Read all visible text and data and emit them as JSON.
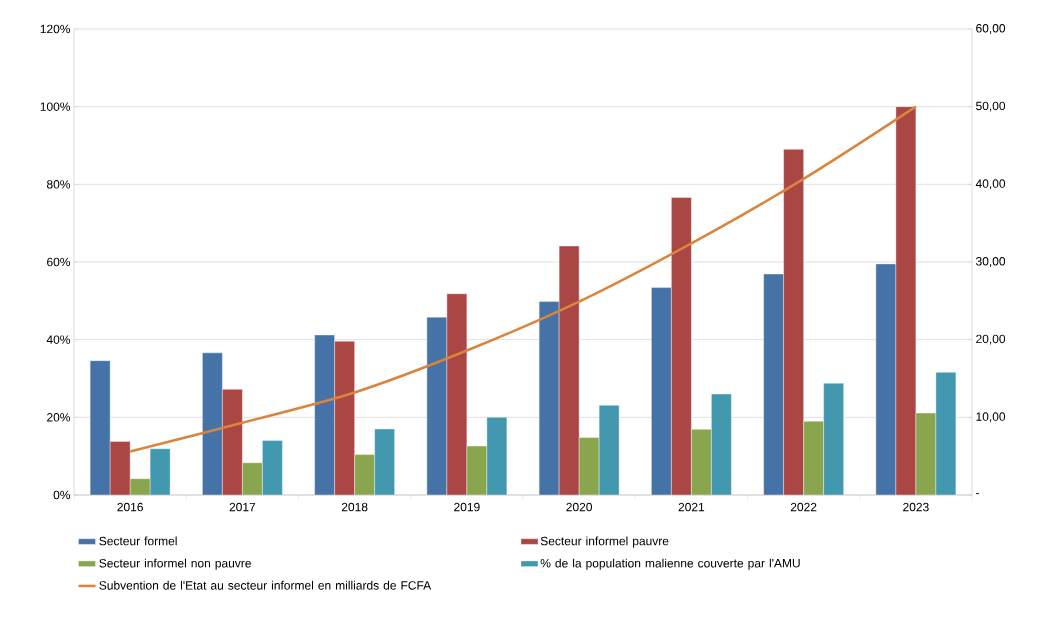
{
  "chart_data": {
    "type": "bar",
    "categories": [
      "2016",
      "2017",
      "2018",
      "2019",
      "2020",
      "2021",
      "2022",
      "2023"
    ],
    "series": [
      {
        "name": "Secteur formel",
        "color": "#4572a7",
        "values": [
          34.6,
          36.6,
          41.2,
          45.8,
          49.8,
          53.4,
          56.9,
          59.5
        ]
      },
      {
        "name": "Secteur informel pauvre",
        "color": "#aa4643",
        "values": [
          13.8,
          27.2,
          39.6,
          51.8,
          64.1,
          76.6,
          89.0,
          100
        ]
      },
      {
        "name": "Secteur informel non pauvre",
        "color": "#89a54e",
        "values": [
          4.2,
          8.3,
          10.4,
          12.6,
          14.8,
          16.9,
          19.0,
          21.1
        ]
      },
      {
        "name": "% de la population malienne couverte par l'AMU",
        "color": "#4198af",
        "values": [
          11.9,
          14.0,
          17.0,
          20.0,
          23.1,
          26.0,
          28.8,
          31.6
        ]
      },
      {
        "name": "Subvention de l'Etat au secteur informel en milliards de FCFA",
        "color": "#db843d",
        "type": "line",
        "axis": "y2",
        "values": [
          5.6,
          9.3,
          13.2,
          18.6,
          24.9,
          32.4,
          40.7,
          50.0
        ]
      }
    ],
    "ylim": [
      0,
      120
    ],
    "yticks": [
      {
        "value": 0,
        "label": "0%"
      },
      {
        "value": 20,
        "label": "20%"
      },
      {
        "value": 40,
        "label": "40%"
      },
      {
        "value": 60,
        "label": "60%"
      },
      {
        "value": 80,
        "label": "80%"
      },
      {
        "value": 100,
        "label": "100%"
      },
      {
        "value": 120,
        "label": "120%"
      }
    ],
    "y2lim": [
      0,
      60
    ],
    "y2ticks": [
      {
        "value": 0,
        "label": "-"
      },
      {
        "value": 10,
        "label": "10,00"
      },
      {
        "value": 20,
        "label": "20,00"
      },
      {
        "value": 30,
        "label": "30,00"
      },
      {
        "value": 40,
        "label": "40,00"
      },
      {
        "value": 50,
        "label": "50,00"
      },
      {
        "value": 60,
        "label": "60,00"
      }
    ],
    "grid": "y",
    "legend": "bottom",
    "marker": "none",
    "line_style": "solid"
  }
}
